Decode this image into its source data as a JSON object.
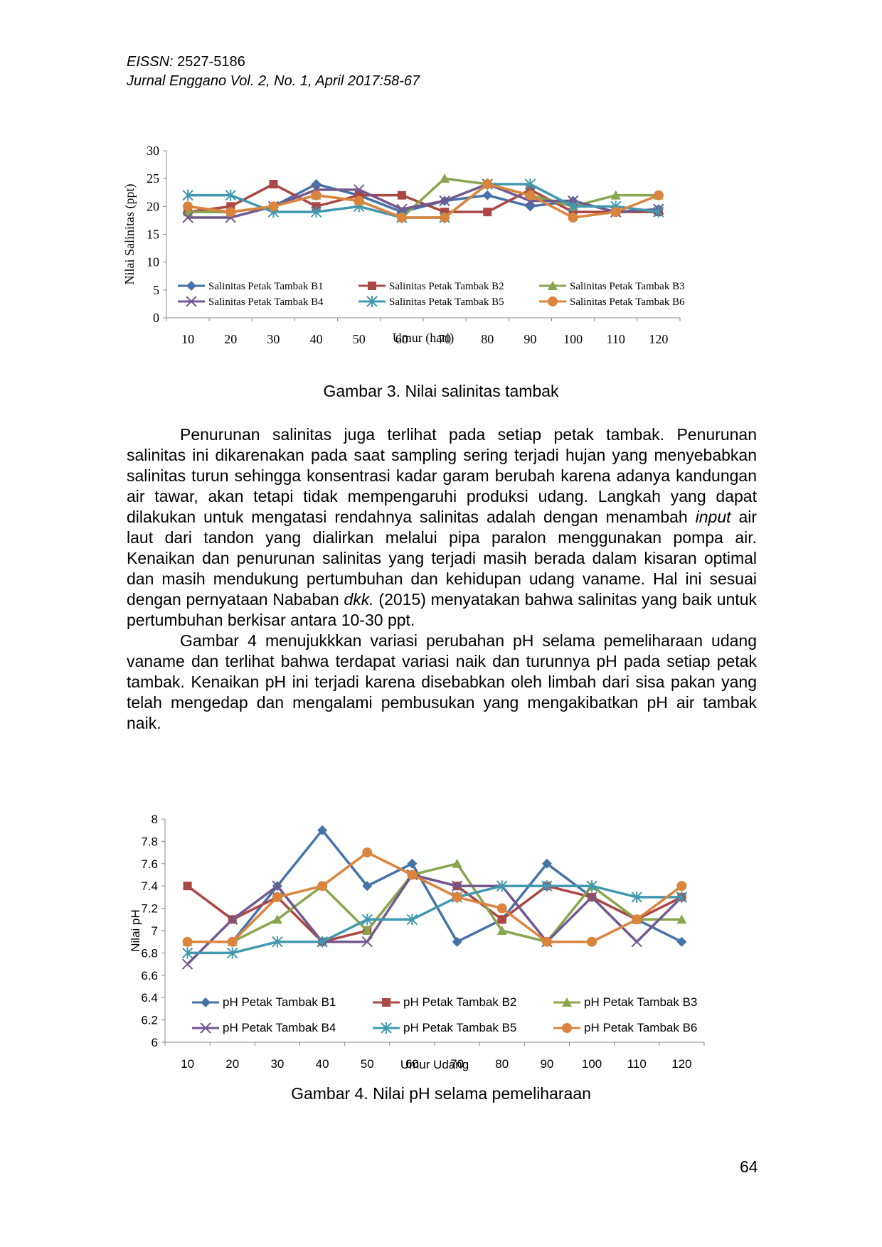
{
  "header": {
    "eissn_label": "EISSN:",
    "eissn_value": "2527-5186",
    "journal": "Jurnal Enggano Vol. 2, No. 1, April 2017:58-67"
  },
  "figure3": {
    "caption": "Gambar 3. Nilai salinitas tambak"
  },
  "paragraphs": [
    {
      "t1": "Penurunan salinitas juga terlihat pada setiap petak tambak. Penurunan salinitas ini dikarenakan pada saat sampling sering terjadi hujan yang menyebabkan salinitas turun sehingga konsentrasi kadar garam berubah karena adanya kandungan air tawar, akan tetapi tidak mempengaruhi produksi udang. Langkah yang dapat dilakukan untuk mengatasi rendahnya salinitas adalah dengan menambah ",
      "i1": "input",
      "t2": " air laut dari tandon yang dialirkan melalui pipa paralon menggunakan pompa air. Kenaikan dan penurunan salinitas yang terjadi masih berada dalam kisaran optimal dan masih mendukung pertumbuhan dan kehidupan udang vaname. Hal ini sesuai dengan pernyataan Nababan ",
      "i2": "dkk.",
      "t3": " (2015) menyatakan bahwa salinitas yang baik untuk pertumbuhan berkisar antara 10-30 ppt."
    },
    {
      "t1": "Gambar 4 menujukkkan variasi perubahan pH selama pemeliharaan udang vaname dan terlihat bahwa terdapat variasi naik dan turunnya pH pada setiap petak tambak. Kenaikan pH ini terjadi karena disebabkan oleh limbah dari sisa pakan yang telah mengedap dan mengalami pembusukan yang mengakibatkan pH air tambak naik."
    }
  ],
  "figure4": {
    "caption": "Gambar 4. Nilai pH selama pemeliharaan"
  },
  "page_number": "64",
  "chart_data": [
    {
      "type": "line",
      "title": "",
      "xlabel": "Umur  (hari)",
      "ylabel": "Nilai Salinitas (ppt)",
      "categories": [
        "10",
        "20",
        "30",
        "40",
        "50",
        "60",
        "70",
        "80",
        "90",
        "100",
        "110",
        "120"
      ],
      "ylim": [
        0,
        30
      ],
      "yticks": [
        "0",
        "5",
        "10",
        "15",
        "20",
        "25",
        "30"
      ],
      "legend": "bottom-inside",
      "series": [
        {
          "name": "Salinitas Petak Tambak B1",
          "color": "#4572A7",
          "marker": "diamond",
          "values": [
            19,
            19,
            20,
            24,
            22,
            19,
            21,
            22,
            20,
            21,
            19,
            19.5
          ]
        },
        {
          "name": "Salinitas Petak Tambak B2",
          "color": "#AA4643",
          "marker": "square",
          "values": [
            19,
            20,
            24,
            20,
            22,
            22,
            19,
            19,
            23,
            19,
            19,
            19
          ]
        },
        {
          "name": "Salinitas Petak Tambak B3",
          "color": "#89A54E",
          "marker": "triangle",
          "values": [
            19,
            19,
            20,
            22,
            21,
            18,
            25,
            24,
            22,
            20,
            22,
            22
          ]
        },
        {
          "name": "Salinitas Petak Tambak B4",
          "color": "#71588F",
          "marker": "x",
          "values": [
            18,
            18,
            20,
            23,
            23,
            19.5,
            21,
            24,
            21,
            21,
            19,
            19.5
          ]
        },
        {
          "name": "Salinitas Petak Tambak B5",
          "color": "#4198AF",
          "marker": "star",
          "values": [
            22,
            22,
            19,
            19,
            20,
            18,
            18,
            24,
            24,
            20,
            20,
            19
          ]
        },
        {
          "name": "Salinitas Petak Tambak B6",
          "color": "#DB843D",
          "marker": "circle",
          "values": [
            20,
            19,
            20,
            22,
            21,
            18,
            18,
            24,
            22,
            18,
            19,
            22
          ]
        }
      ]
    },
    {
      "type": "line",
      "title": "",
      "xlabel": "Umur Udang",
      "ylabel": "Nilai pH",
      "categories": [
        "10",
        "20",
        "30",
        "40",
        "50",
        "60",
        "70",
        "80",
        "90",
        "100",
        "110",
        "120"
      ],
      "ylim": [
        6,
        8
      ],
      "yticks": [
        "6",
        "6.2",
        "6.4",
        "6.6",
        "6.8",
        "7",
        "7.2",
        "7.4",
        "7.6",
        "7.8",
        "8"
      ],
      "legend": "bottom-inside",
      "series": [
        {
          "name": "pH Petak Tambak B1",
          "color": "#4572A7",
          "marker": "diamond",
          "values": [
            6.9,
            6.9,
            7.4,
            7.9,
            7.4,
            7.6,
            6.9,
            7.1,
            7.6,
            7.3,
            7.1,
            6.9
          ]
        },
        {
          "name": "pH Petak Tambak B2",
          "color": "#AA4643",
          "marker": "square",
          "values": [
            7.4,
            7.1,
            7.3,
            6.9,
            7.0,
            7.5,
            7.4,
            7.1,
            7.4,
            7.3,
            7.1,
            7.3
          ]
        },
        {
          "name": "pH Petak Tambak B3",
          "color": "#89A54E",
          "marker": "triangle",
          "values": [
            6.9,
            6.9,
            7.1,
            7.4,
            7.0,
            7.5,
            7.6,
            7.0,
            6.9,
            7.4,
            7.1,
            7.1
          ]
        },
        {
          "name": "pH Petak Tambak B4",
          "color": "#71588F",
          "marker": "x",
          "values": [
            6.7,
            7.1,
            7.4,
            6.9,
            6.9,
            7.5,
            7.4,
            7.4,
            6.9,
            7.3,
            6.9,
            7.3
          ]
        },
        {
          "name": "pH Petak Tambak B5",
          "color": "#4198AF",
          "marker": "star",
          "values": [
            6.8,
            6.8,
            6.9,
            6.9,
            7.1,
            7.1,
            7.3,
            7.4,
            7.4,
            7.4,
            7.3,
            7.3
          ]
        },
        {
          "name": "pH Petak Tambak B6",
          "color": "#DB843D",
          "marker": "circle",
          "values": [
            6.9,
            6.9,
            7.3,
            7.4,
            7.7,
            7.5,
            7.3,
            7.2,
            6.9,
            6.9,
            7.1,
            7.4
          ]
        }
      ]
    }
  ]
}
